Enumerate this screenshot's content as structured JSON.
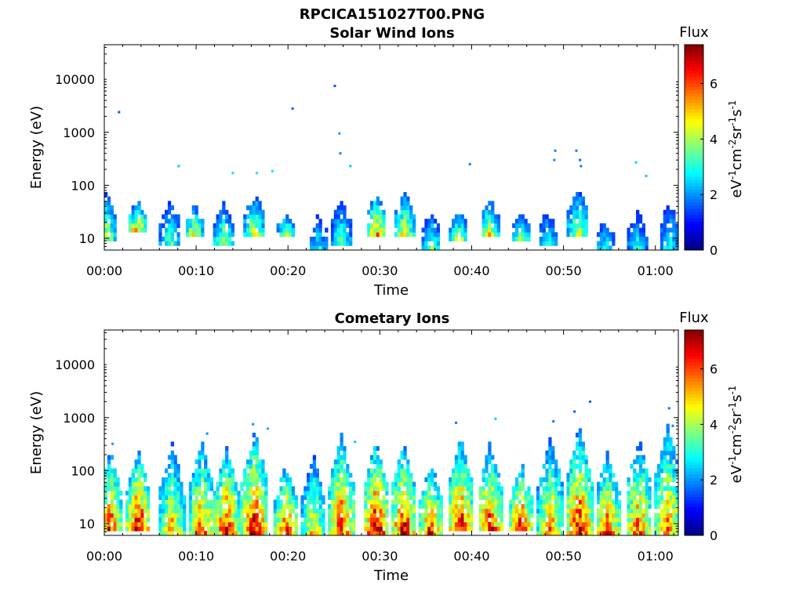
{
  "figure": {
    "title": "RPCICA151027T00.PNG"
  },
  "colorbar": {
    "label": "Flux",
    "unit_label": "eV-1cm-2sr-1s-1",
    "range": [
      0,
      7.4
    ],
    "ticks": [
      "0",
      "2",
      "4",
      "6"
    ],
    "colormap": "jet"
  },
  "chart_data": [
    {
      "type": "heatmap",
      "title": "Solar Wind Ions",
      "xlabel": "Time",
      "ylabel": "Energy (eV)",
      "x_unit": "minutes",
      "xlim": [
        0,
        62.5
      ],
      "ylim": [
        6,
        45000
      ],
      "yscale": "log",
      "xticks": [
        "00:00",
        "00:10",
        "00:20",
        "00:30",
        "00:40",
        "00:50",
        "01:00"
      ],
      "yticks": [
        "10",
        "100",
        "1000",
        "10000"
      ],
      "bursts": [
        {
          "t": 0.2,
          "e_lo": 10,
          "e_hi": 80,
          "peak": 4.5
        },
        {
          "t": 3.6,
          "e_lo": 15,
          "e_hi": 55,
          "peak": 5.3
        },
        {
          "t": 7.2,
          "e_lo": 8,
          "e_hi": 65,
          "peak": 3.6
        },
        {
          "t": 9.8,
          "e_lo": 12,
          "e_hi": 45,
          "peak": 4.8
        },
        {
          "t": 13.0,
          "e_lo": 8,
          "e_hi": 50,
          "peak": 4.2
        },
        {
          "t": 16.3,
          "e_lo": 12,
          "e_hi": 90,
          "peak": 4.5
        },
        {
          "t": 19.8,
          "e_lo": 12,
          "e_hi": 30,
          "peak": 4.4
        },
        {
          "t": 23.3,
          "e_lo": 7,
          "e_hi": 35,
          "peak": 3.0
        },
        {
          "t": 25.8,
          "e_lo": 8,
          "e_hi": 60,
          "peak": 3.6
        },
        {
          "t": 29.6,
          "e_lo": 12,
          "e_hi": 75,
          "peak": 5.6
        },
        {
          "t": 32.7,
          "e_lo": 12,
          "e_hi": 80,
          "peak": 4.9
        },
        {
          "t": 35.6,
          "e_lo": 7,
          "e_hi": 35,
          "peak": 3.8
        },
        {
          "t": 38.6,
          "e_lo": 10,
          "e_hi": 35,
          "peak": 4.4
        },
        {
          "t": 42.0,
          "e_lo": 12,
          "e_hi": 60,
          "peak": 4.9
        },
        {
          "t": 45.4,
          "e_lo": 10,
          "e_hi": 30,
          "peak": 4.5
        },
        {
          "t": 48.3,
          "e_lo": 8,
          "e_hi": 40,
          "peak": 3.2
        },
        {
          "t": 51.6,
          "e_lo": 12,
          "e_hi": 100,
          "peak": 4.5
        },
        {
          "t": 54.5,
          "e_lo": 7,
          "e_hi": 25,
          "peak": 3.1
        },
        {
          "t": 58.0,
          "e_lo": 7,
          "e_hi": 40,
          "peak": 3.0
        },
        {
          "t": 61.6,
          "e_lo": 7,
          "e_hi": 70,
          "peak": 3.2
        }
      ],
      "sparse_points": [
        {
          "t": 1.6,
          "e": 2400,
          "v": 1.6
        },
        {
          "t": 20.5,
          "e": 2800,
          "v": 1.6
        },
        {
          "t": 25.1,
          "e": 7500,
          "v": 1.5
        },
        {
          "t": 25.6,
          "e": 950,
          "v": 2.1
        },
        {
          "t": 25.7,
          "e": 400,
          "v": 1.9
        },
        {
          "t": 8.1,
          "e": 230,
          "v": 2.4
        },
        {
          "t": 14.0,
          "e": 170,
          "v": 2.6
        },
        {
          "t": 16.6,
          "e": 170,
          "v": 2.6
        },
        {
          "t": 18.3,
          "e": 185,
          "v": 2.6
        },
        {
          "t": 26.8,
          "e": 230,
          "v": 2.3
        },
        {
          "t": 39.8,
          "e": 250,
          "v": 1.9
        },
        {
          "t": 49.1,
          "e": 450,
          "v": 1.9
        },
        {
          "t": 49.0,
          "e": 300,
          "v": 2.0
        },
        {
          "t": 51.4,
          "e": 450,
          "v": 1.8
        },
        {
          "t": 51.8,
          "e": 300,
          "v": 1.7
        },
        {
          "t": 51.9,
          "e": 230,
          "v": 1.9
        },
        {
          "t": 57.9,
          "e": 270,
          "v": 2.5
        },
        {
          "t": 59.0,
          "e": 150,
          "v": 2.4
        }
      ]
    },
    {
      "type": "heatmap",
      "title": "Cometary Ions",
      "xlabel": "Time",
      "ylabel": "Energy (eV)",
      "x_unit": "minutes",
      "xlim": [
        0,
        62.5
      ],
      "ylim": [
        6,
        45000
      ],
      "yscale": "log",
      "xticks": [
        "00:00",
        "00:10",
        "00:20",
        "00:30",
        "00:40",
        "00:50",
        "01:00"
      ],
      "yticks": [
        "10",
        "100",
        "1000",
        "10000"
      ],
      "bursts": [
        {
          "t": 0.6,
          "e_lo": 8,
          "e_hi": 250,
          "peak": 6.6
        },
        {
          "t": 3.7,
          "e_lo": 8,
          "e_hi": 250,
          "peak": 7.2
        },
        {
          "t": 7.4,
          "e_lo": 7,
          "e_hi": 350,
          "peak": 5.5
        },
        {
          "t": 10.6,
          "e_lo": 7,
          "e_hi": 400,
          "peak": 6.2
        },
        {
          "t": 13.3,
          "e_lo": 7,
          "e_hi": 300,
          "peak": 6.8
        },
        {
          "t": 16.4,
          "e_lo": 7,
          "e_hi": 650,
          "peak": 7.0
        },
        {
          "t": 19.8,
          "e_lo": 7,
          "e_hi": 150,
          "peak": 6.5
        },
        {
          "t": 22.8,
          "e_lo": 7,
          "e_hi": 200,
          "peak": 5.2
        },
        {
          "t": 25.8,
          "e_lo": 7,
          "e_hi": 500,
          "peak": 6.8
        },
        {
          "t": 29.6,
          "e_lo": 7,
          "e_hi": 400,
          "peak": 7.4
        },
        {
          "t": 32.6,
          "e_lo": 7,
          "e_hi": 350,
          "peak": 7.0
        },
        {
          "t": 35.6,
          "e_lo": 7,
          "e_hi": 150,
          "peak": 6.6
        },
        {
          "t": 38.8,
          "e_lo": 8,
          "e_hi": 450,
          "peak": 6.8
        },
        {
          "t": 42.0,
          "e_lo": 8,
          "e_hi": 350,
          "peak": 6.8
        },
        {
          "t": 45.4,
          "e_lo": 8,
          "e_hi": 150,
          "peak": 6.8
        },
        {
          "t": 48.6,
          "e_lo": 7,
          "e_hi": 450,
          "peak": 5.8
        },
        {
          "t": 51.7,
          "e_lo": 7,
          "e_hi": 700,
          "peak": 7.0
        },
        {
          "t": 54.8,
          "e_lo": 7,
          "e_hi": 250,
          "peak": 6.5
        },
        {
          "t": 58.2,
          "e_lo": 7,
          "e_hi": 450,
          "peak": 6.2
        },
        {
          "t": 61.4,
          "e_lo": 7,
          "e_hi": 900,
          "peak": 5.9
        }
      ],
      "sparse_points": [
        {
          "t": 0.9,
          "e": 320,
          "v": 2.0
        },
        {
          "t": 11.2,
          "e": 500,
          "v": 2.0
        },
        {
          "t": 16.2,
          "e": 750,
          "v": 2.0
        },
        {
          "t": 17.8,
          "e": 620,
          "v": 2.2
        },
        {
          "t": 27.3,
          "e": 350,
          "v": 2.4
        },
        {
          "t": 38.3,
          "e": 800,
          "v": 1.7
        },
        {
          "t": 42.6,
          "e": 950,
          "v": 2.4
        },
        {
          "t": 48.9,
          "e": 850,
          "v": 1.8
        },
        {
          "t": 51.2,
          "e": 1300,
          "v": 1.6
        },
        {
          "t": 52.9,
          "e": 2000,
          "v": 1.6
        },
        {
          "t": 61.5,
          "e": 1500,
          "v": 1.8
        },
        {
          "t": 61.9,
          "e": 700,
          "v": 1.8
        }
      ]
    }
  ]
}
